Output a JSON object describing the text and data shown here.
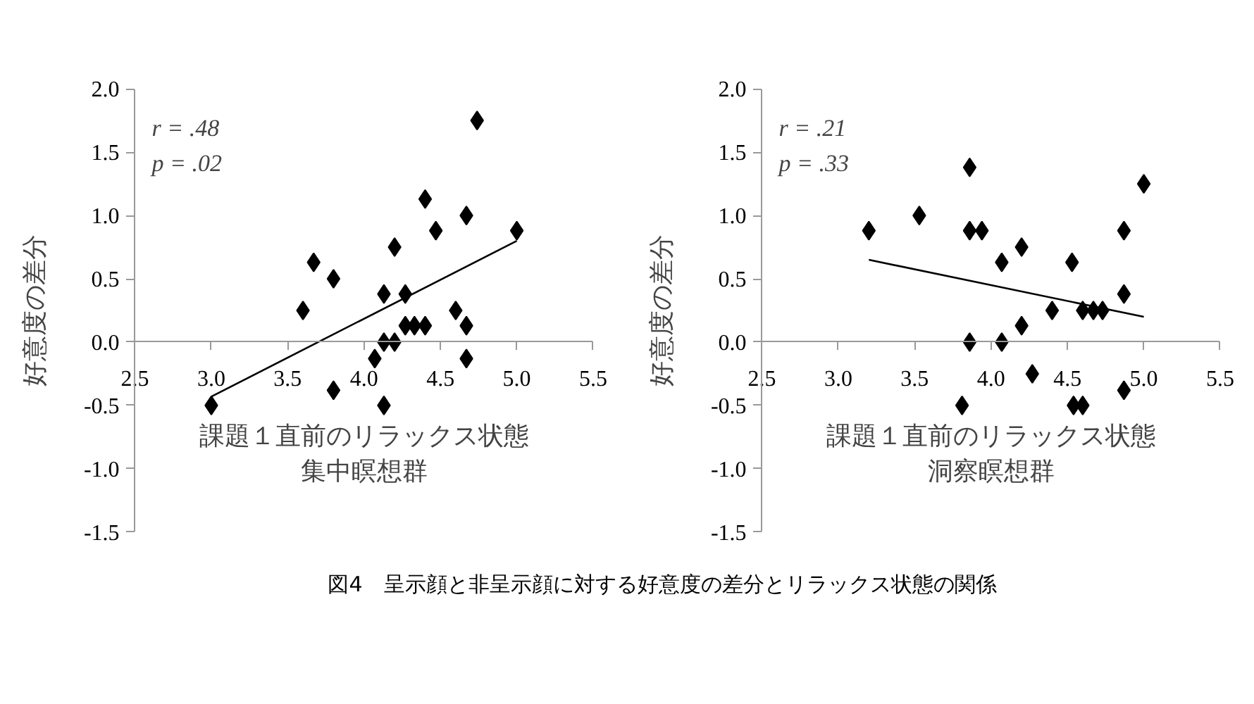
{
  "chart_data": [
    {
      "type": "scatter",
      "title": "集中瞑想群",
      "xlabel": "課題１直前のリラックス状態",
      "ylabel": "好意度の差分",
      "annotations": [
        "r = .48",
        "p = .02",
        "図4　呈示顔と非呈示顔に対する好意度の差分とリラックス状態の関係"
      ],
      "xlim": [
        2.5,
        5.5
      ],
      "xticks": [
        2.5,
        {
          "value": 3,
          "label": "3.0"
        },
        3.5,
        {
          "value": 4,
          "label": "4.0"
        },
        4.5,
        {
          "value": 5,
          "label": "5.0"
        },
        5.5
      ],
      "ylim": [
        -1.5,
        2.0
      ],
      "yticks": [
        -1.5,
        {
          "value": -1,
          "label": "-1.0"
        },
        -0.5,
        {
          "value": 0,
          "label": "0.0"
        },
        0.5,
        {
          "value": 1,
          "label": "1.0"
        },
        1.5,
        {
          "value": 2,
          "label": "2.0"
        }
      ],
      "series": [
        {
          "color": "#000000",
          "marker": "diamond",
          "x": [
            3.0,
            3.6,
            3.67,
            3.8,
            3.8,
            4.07,
            4.13,
            4.13,
            4.13,
            4.2,
            4.2,
            4.27,
            4.27,
            4.33,
            4.4,
            4.4,
            4.47,
            4.6,
            4.67,
            4.67,
            4.67,
            4.74,
            5.0
          ],
          "values": [
            -0.5,
            0.25,
            0.63,
            0.5,
            -0.38,
            -0.13,
            0,
            -0.5,
            0.38,
            0,
            0.75,
            0.38,
            0.13,
            0.13,
            0.13,
            1.13,
            0.88,
            0.25,
            0.13,
            1.0,
            -0.13,
            1.75,
            0.88
          ]
        },
        {
          "type": "line",
          "color": "#000000",
          "x": [
            3.0,
            5.0
          ],
          "values": [
            -0.43,
            0.8
          ]
        }
      ]
    },
    {
      "type": "scatter",
      "title": "洞察瞑想群",
      "xlabel": "課題１直前のリラックス状態",
      "ylabel": "好意度の差分",
      "annotations": [
        "r = .21",
        "p = .33"
      ],
      "xlim": [
        2.5,
        5.5
      ],
      "xticks": [
        2.5,
        {
          "value": 3,
          "label": "3.0"
        },
        3.5,
        {
          "value": 4,
          "label": "4.0"
        },
        4.5,
        {
          "value": 5,
          "label": "5.0"
        },
        5.5
      ],
      "ylim": [
        -1.5,
        2.0
      ],
      "yticks": [
        -1.5,
        {
          "value": -1,
          "label": "-1.0"
        },
        -0.5,
        {
          "value": 0,
          "label": "0.0"
        },
        0.5,
        {
          "value": 1,
          "label": "1.0"
        },
        1.5,
        {
          "value": 2,
          "label": "2.0"
        }
      ],
      "series": [
        {
          "color": "#000000",
          "marker": "diamond",
          "x": [
            3.2,
            3.53,
            3.86,
            3.86,
            3.94,
            3.86,
            3.81,
            4.07,
            4.07,
            4.2,
            4.2,
            4.27,
            4.4,
            4.53,
            4.54,
            4.6,
            4.6,
            4.67,
            4.73,
            4.87,
            4.87,
            4.87,
            5.0
          ],
          "values": [
            0.88,
            1.0,
            1.38,
            0.88,
            0.88,
            0,
            -0.5,
            0.63,
            0,
            0.75,
            0.13,
            -0.25,
            0.25,
            0.63,
            -0.5,
            -0.5,
            0.25,
            0.25,
            0.25,
            0.88,
            0.38,
            -0.38,
            1.25
          ]
        },
        {
          "type": "line",
          "color": "#000000",
          "x": [
            3.2,
            5.0
          ],
          "values": [
            0.65,
            0.2
          ]
        }
      ]
    }
  ]
}
